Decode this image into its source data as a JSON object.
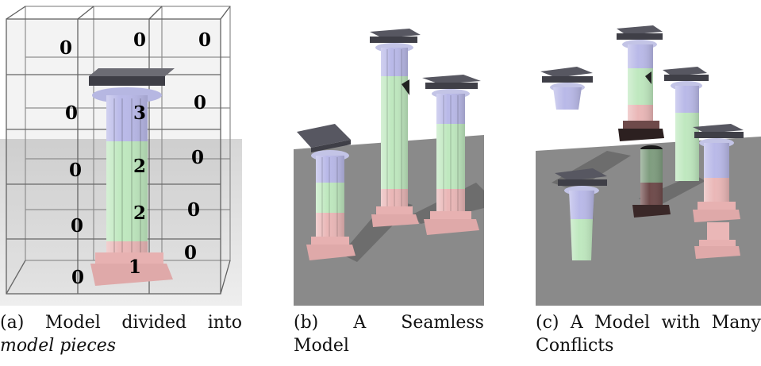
{
  "figure": {
    "panels": [
      {
        "id": "a",
        "cell_labels": [
          "0",
          "0",
          "0",
          "0",
          "3",
          "0",
          "0",
          "2",
          "0",
          "0",
          "2",
          "0",
          "0",
          "1",
          "0"
        ],
        "caption": {
          "label": "(a)",
          "words_line1": [
            "Model",
            "divided",
            "into"
          ],
          "line2": "model pieces"
        }
      },
      {
        "id": "b",
        "caption": {
          "label": "(b)",
          "words_line1": [
            "A",
            "Seamless"
          ],
          "line2": "Model"
        }
      },
      {
        "id": "c",
        "caption": {
          "label": "(c)",
          "words_line1": [
            "A",
            "Model",
            "with",
            "Many"
          ],
          "line2": "Conflicts"
        }
      }
    ],
    "colors": {
      "capital": "#c3c4e6",
      "shaft_top": "#b9b9e8",
      "shaft_mid": "#bfe8bf",
      "shaft_bottom": "#eab7b7",
      "floor": "#8a8a8a",
      "slab": "#4b4b55"
    }
  }
}
